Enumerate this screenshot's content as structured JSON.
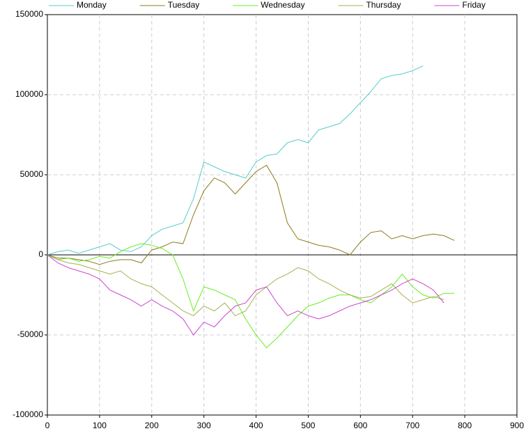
{
  "chart_data": {
    "type": "line",
    "x": [
      0,
      20,
      40,
      60,
      80,
      100,
      120,
      140,
      160,
      180,
      200,
      220,
      240,
      260,
      280,
      300,
      320,
      340,
      360,
      380,
      400,
      420,
      440,
      460,
      480,
      500,
      520,
      540,
      560,
      580,
      600,
      620,
      640,
      660,
      680,
      700,
      720,
      740,
      760,
      780
    ],
    "series": [
      {
        "name": "Monday",
        "color": "#55cccc",
        "values": [
          0,
          2000,
          3000,
          1000,
          3000,
          5000,
          7000,
          3000,
          2000,
          5000,
          12000,
          16000,
          18000,
          20000,
          35000,
          58000,
          55000,
          52000,
          50000,
          48000,
          58000,
          62000,
          63000,
          70000,
          72000,
          70000,
          78000,
          80000,
          82000,
          88000,
          95000,
          102000,
          110000,
          112000,
          113000,
          115000,
          118000,
          null,
          null,
          null
        ]
      },
      {
        "name": "Tuesday",
        "color": "#8b7a1a",
        "values": [
          0,
          -2000,
          -2000,
          -3000,
          -4000,
          -6000,
          -4000,
          -3000,
          -3000,
          -5000,
          3000,
          5000,
          8000,
          7000,
          25000,
          40000,
          48000,
          45000,
          38000,
          45000,
          52000,
          56000,
          45000,
          20000,
          10000,
          8000,
          6000,
          5000,
          3000,
          0,
          8000,
          14000,
          15000,
          10000,
          12000,
          10000,
          12000,
          13000,
          12000,
          9000
        ]
      },
      {
        "name": "Wednesday",
        "color": "#66ee22",
        "values": [
          0,
          -3000,
          -2000,
          -4000,
          -3000,
          -1000,
          -2000,
          2000,
          5000,
          7000,
          6000,
          4000,
          0,
          -15000,
          -35000,
          -20000,
          -22000,
          -25000,
          -28000,
          -40000,
          -50000,
          -58000,
          -52000,
          -45000,
          -38000,
          -32000,
          -30000,
          -27000,
          -25000,
          -25000,
          -28000,
          -30000,
          -25000,
          -20000,
          -12000,
          -20000,
          -25000,
          -27000,
          -24000,
          -24000
        ]
      },
      {
        "name": "Thursday",
        "color": "#a4b050",
        "values": [
          0,
          -3000,
          -5000,
          -6000,
          -8000,
          -10000,
          -12000,
          -10000,
          -15000,
          -18000,
          -20000,
          -25000,
          -30000,
          -35000,
          -38000,
          -32000,
          -35000,
          -30000,
          -38000,
          -35000,
          -25000,
          -20000,
          -15000,
          -12000,
          -8000,
          -10000,
          -15000,
          -18000,
          -22000,
          -25000,
          -27000,
          -26000,
          -22000,
          -18000,
          -25000,
          -30000,
          -28000,
          -26000,
          -28000,
          null
        ]
      },
      {
        "name": "Friday",
        "color": "#cc44cc",
        "values": [
          0,
          -5000,
          -8000,
          -10000,
          -12000,
          -15000,
          -22000,
          -25000,
          -28000,
          -32000,
          -28000,
          -32000,
          -35000,
          -40000,
          -50000,
          -42000,
          -45000,
          -38000,
          -32000,
          -30000,
          -22000,
          -20000,
          -30000,
          -38000,
          -35000,
          -38000,
          -40000,
          -38000,
          -35000,
          -32000,
          -30000,
          -28000,
          -25000,
          -22000,
          -18000,
          -15000,
          -18000,
          -22000,
          -30000,
          null
        ]
      }
    ],
    "xlim": [
      0,
      900
    ],
    "xticks": [
      0,
      100,
      200,
      300,
      400,
      500,
      600,
      700,
      800,
      900
    ],
    "ylim": [
      -100000,
      150000
    ],
    "yticks": [
      -100000,
      -50000,
      0,
      50000,
      100000,
      150000
    ],
    "grid": true,
    "legend": "top"
  }
}
